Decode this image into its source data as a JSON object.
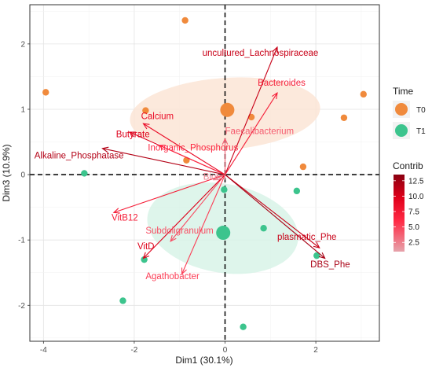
{
  "chart_data": {
    "type": "scatter",
    "subtype": "pca-biplot",
    "xlabel": "Dim1 (30.1%)",
    "ylabel": "Dim3 (10.9%)",
    "xlim": [
      -4.3,
      3.4
    ],
    "ylim": [
      -2.55,
      2.6
    ],
    "xticks": [
      -4,
      -2,
      0,
      2
    ],
    "yticks": [
      -2,
      -1,
      0,
      1,
      2
    ],
    "grid": true,
    "legend_placement": "right",
    "groups": [
      {
        "name": "T0",
        "color": "#f08a3c",
        "ellipse_color": "#fbe3d3",
        "ellipse": {
          "cx": 0,
          "cy": 0.93,
          "rx": 2.1,
          "ry": 0.55,
          "angle": -4
        },
        "centroid": [
          0.05,
          0.99
        ],
        "points": [
          [
            -3.95,
            1.26
          ],
          [
            -0.88,
            2.36
          ],
          [
            -1.75,
            0.98
          ],
          [
            -0.85,
            0.22
          ],
          [
            0.58,
            0.88
          ],
          [
            1.72,
            0.12
          ],
          [
            2.62,
            0.87
          ],
          [
            3.05,
            1.23
          ]
        ]
      },
      {
        "name": "T1",
        "color": "#3cc48d",
        "ellipse_color": "#d6f2e6",
        "ellipse": {
          "cx": -0.05,
          "cy": -0.82,
          "rx": 1.68,
          "ry": 0.68,
          "angle": 10
        },
        "centroid": [
          -0.04,
          -0.89
        ],
        "points": [
          [
            -3.1,
            0.02
          ],
          [
            -0.02,
            -0.23
          ],
          [
            1.58,
            -0.25
          ],
          [
            0.85,
            -0.82
          ],
          [
            2.02,
            -1.24
          ],
          [
            -1.78,
            -1.3
          ],
          [
            -2.25,
            -1.93
          ],
          [
            0.4,
            -2.33
          ]
        ]
      }
    ],
    "legend": {
      "title": "Time",
      "entries": [
        "T0",
        "T1"
      ]
    },
    "contrib_legend": {
      "title": "Contrib",
      "ticks": [
        "12.5",
        "10.0",
        "7.5",
        "5.0",
        "2.5"
      ],
      "tick_values": [
        12.5,
        10.0,
        7.5,
        5.0,
        2.5
      ],
      "range": [
        1.0,
        13.5
      ],
      "colors": [
        "#e6a3ab",
        "#ff2a45",
        "#e0001a",
        "#8a0010"
      ]
    },
    "variables": [
      {
        "name": "uncultured_Lachnospiraceae",
        "x": 1.15,
        "y": 1.95,
        "contrib": 10.5,
        "lx": -0.5,
        "ly": 1.82
      },
      {
        "name": "Bacteroides",
        "x": 1.15,
        "y": 1.25,
        "contrib": 6.5,
        "lx": 0.72,
        "ly": 1.36
      },
      {
        "name": "Faecalibacterium",
        "x": 0.0,
        "y": 0.55,
        "contrib": 3.5,
        "lx": 0.0,
        "ly": 0.62
      },
      {
        "name": "Calcium",
        "x": -1.8,
        "y": 0.78,
        "contrib": 8.0,
        "lx": -1.85,
        "ly": 0.85
      },
      {
        "name": "Butyrate",
        "x": -2.1,
        "y": 0.65,
        "contrib": 9.5,
        "lx": -2.4,
        "ly": 0.57
      },
      {
        "name": "Inorganic_Phosphorus",
        "x": -1.45,
        "y": 0.45,
        "contrib": 5.5,
        "lx": -1.7,
        "ly": 0.37
      },
      {
        "name": "Alkaline_Phosphatase",
        "x": -2.7,
        "y": 0.4,
        "contrib": 11.5,
        "lx": -4.2,
        "ly": 0.25
      },
      {
        "name": "Biotin",
        "x": -0.25,
        "y": -0.08,
        "contrib": 2.0,
        "lx": -0.48,
        "ly": -0.08
      },
      {
        "name": "VitB12",
        "x": -2.45,
        "y": -0.58,
        "contrib": 6.5,
        "lx": -2.5,
        "ly": -0.7
      },
      {
        "name": "Subdoligranulum",
        "x": -1.2,
        "y": -1.02,
        "contrib": 4.0,
        "lx": -1.75,
        "ly": -0.9
      },
      {
        "name": "VitD",
        "x": -1.8,
        "y": -1.28,
        "contrib": 9.5,
        "lx": -1.93,
        "ly": -1.14
      },
      {
        "name": "Agathobacter",
        "x": -0.95,
        "y": -1.52,
        "contrib": 4.5,
        "lx": -1.75,
        "ly": -1.6
      },
      {
        "name": "plasmatic_Phe",
        "x": 2.08,
        "y": -1.12,
        "contrib": 10.5,
        "lx": 1.15,
        "ly": -1.0
      },
      {
        "name": "DBS_Phe",
        "x": 2.2,
        "y": -1.28,
        "contrib": 12.0,
        "lx": 1.88,
        "ly": -1.42
      }
    ]
  }
}
